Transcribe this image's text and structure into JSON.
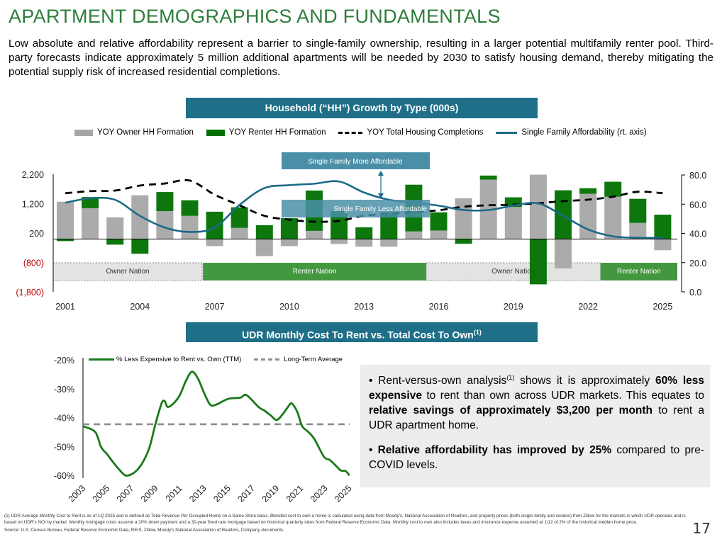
{
  "title": "APARTMENT DEMOGRAPHICS AND FUNDAMENTALS",
  "intro": "Low absolute and relative affordability represent a barrier to single-family ownership, resulting in a larger potential multifamily renter pool. Third-party forecasts indicate approximately 5 million additional apartments will be needed by 2030 to satisfy housing demand, thereby mitigating the potential supply risk of increased residential completions.",
  "page_number": "17",
  "colors": {
    "title": "#2e7d3a",
    "header": "#1e6f87",
    "owner": "#a6a6a6",
    "renter": "#007000",
    "affordability": "#1b6a86",
    "negative_label": "#c00000",
    "rent_line": "#1a7a1a",
    "average": "#8c8c8c"
  },
  "chart_data": [
    {
      "type": "bar",
      "title": "Household (“HH”) Growth by Type (000s)",
      "legend": [
        "YOY Owner HH Formation",
        "YOY Renter HH Formation",
        "YOY Total Housing Completions",
        "Single Family Affordability (rt. axis)"
      ],
      "legend_placement": "top",
      "x_ticks": [
        "2001",
        "2004",
        "2007",
        "2010",
        "2013",
        "2016",
        "2019",
        "2022",
        "2025"
      ],
      "y_left_ticks": [
        "2,200",
        "1,200",
        "200",
        "(800)",
        "(1,800)"
      ],
      "y_right_ticks": [
        "80.0",
        "60.0",
        "40.0",
        "20.0",
        "0.0"
      ],
      "ylim_left": [
        -1800,
        2200
      ],
      "ylim_right": [
        0,
        80
      ],
      "years": [
        2001,
        2002,
        2003,
        2004,
        2005,
        2006,
        2007,
        2008,
        2009,
        2010,
        2011,
        2012,
        2013,
        2014,
        2015,
        2016,
        2017,
        2018,
        2019,
        2020,
        2021,
        2022,
        2023,
        2024,
        2025
      ],
      "series": [
        {
          "name": "YOY Owner HH Formation",
          "values": [
            1270,
            1050,
            740,
            1490,
            950,
            790,
            -240,
            380,
            -580,
            -240,
            280,
            -170,
            -260,
            -260,
            260,
            290,
            1390,
            2020,
            1090,
            2190,
            -1000,
            1540,
            1440,
            550,
            -380
          ]
        },
        {
          "name": "YOY Renter HH Formation",
          "values": [
            -70,
            380,
            -190,
            -500,
            650,
            530,
            930,
            700,
            470,
            710,
            1370,
            970,
            400,
            920,
            1590,
            620,
            -160,
            140,
            330,
            -1540,
            1660,
            190,
            510,
            820,
            830
          ]
        },
        {
          "name": "YOY Total Housing Completions",
          "values": [
            1560,
            1630,
            1650,
            1820,
            1890,
            1990,
            1510,
            1150,
            790,
            660,
            590,
            620,
            790,
            860,
            920,
            980,
            1100,
            1150,
            1170,
            1220,
            1290,
            1340,
            1440,
            1610,
            1560
          ]
        },
        {
          "name": "Single Family Affordability (rt. axis)",
          "values": [
            61,
            64,
            63,
            52,
            44,
            41,
            44,
            59.5,
            71,
            73,
            74,
            75.5,
            68,
            63,
            61,
            59,
            56,
            56,
            59,
            60.6,
            52,
            42.7,
            38,
            37,
            37
          ]
        }
      ],
      "annotations": {
        "more": "Single Family More Affordable",
        "less": "Single Family Less Affordable"
      },
      "periods": [
        {
          "label": "Owner Nation",
          "from": 2001,
          "to": 2007
        },
        {
          "label": "Renter Nation",
          "from": 2007,
          "to": 2016
        },
        {
          "label": "Owner Nation",
          "from": 2016,
          "to": 2023
        },
        {
          "label": "Renter Nation",
          "from": 2023,
          "to": 2025
        }
      ]
    },
    {
      "type": "line",
      "title": "UDR Monthly Cost To Rent vs. Total Cost To Own",
      "title_sup": "(1)",
      "legend": [
        "% Less Expensive to Rent vs. Own (TTM)",
        "Long-Term Average"
      ],
      "legend_placement": "top",
      "y_ticks": [
        "-20%",
        "-30%",
        "-40%",
        "-50%",
        "-60%"
      ],
      "ylim": [
        -60,
        -20
      ],
      "x_ticks": [
        "2003",
        "2005",
        "2007",
        "2009",
        "2011",
        "2013",
        "2015",
        "2017",
        "2019",
        "2021",
        "2023",
        "2025"
      ],
      "x": [
        2003,
        2004,
        2004.5,
        2005,
        2005.5,
        2006,
        2006.5,
        2007,
        2007.5,
        2008,
        2008.5,
        2009,
        2009.5,
        2009.75,
        2010,
        2010.5,
        2011,
        2011.5,
        2012,
        2012.5,
        2013,
        2013.5,
        2014,
        2015,
        2016,
        2016.5,
        2017.5,
        2018,
        2018.5,
        2019,
        2019.5,
        2020,
        2020.25,
        2020.7,
        2021.1,
        2021.6,
        2022.1,
        2022.9,
        2023.4,
        2024,
        2024.3,
        2024.7,
        2025
      ],
      "series": [
        {
          "name": "% Less Expensive to Rent vs. Own (TTM)",
          "values": [
            -43,
            -44.9,
            -50.2,
            -52.7,
            -55.5,
            -58,
            -60,
            -59.6,
            -58,
            -55,
            -50.2,
            -42,
            -35,
            -34.3,
            -36.3,
            -35,
            -32.2,
            -27.3,
            -24.1,
            -26.5,
            -31.4,
            -35.5,
            -35.5,
            -33.5,
            -33.1,
            -32.2,
            -36.3,
            -37.6,
            -39.2,
            -40.8,
            -38.8,
            -35.9,
            -35.1,
            -38,
            -42.9,
            -44.9,
            -47.3,
            -53.5,
            -54.7,
            -57.1,
            -58.3,
            -58.5,
            -60
          ]
        }
      ],
      "long_term_average": -42.3
    }
  ],
  "panel": {
    "b1_a": "Rent-versus-own analysis",
    "b1_sup": "(1)",
    "b1_b": " shows it is approximately ",
    "b1_bold1": "60% less expensive",
    "b1_c": " to rent than own across UDR markets. This equates to ",
    "b1_bold2": "relative savings of approximately $3,200 per month",
    "b1_d": " to rent a UDR apartment home.",
    "b2_bold": "Relative affordability has improved by 25%",
    "b2_rest": " compared to pre-COVID levels."
  },
  "footnote": "(1)   UDR Average Monthly Cost to Rent is as of 1Q 2025 and is defined as Total Revenue Per Occupied Home on a Same-Store basis. Blended cost to own a home is calculated using data from Moody's, National Association of Realtors, and property prices (both single-family and condos) from Zillow for the markets in which UDR operates and is based on UDR's NOI by market. Monthly mortgage costs assume a 20% down payment and a 30-year fixed rate mortgage based on historical quarterly rates from Federal Reserve Economic Data. Monthly cost to own also includes taxes and insurance expense assumed at 1/12 of 2% of the historical median home price.",
  "source": "Source: U.S. Census Bureau, Federal Reserve Economic Data, REIS, Zillow, Moody's National Association of Realtors, Company documents."
}
